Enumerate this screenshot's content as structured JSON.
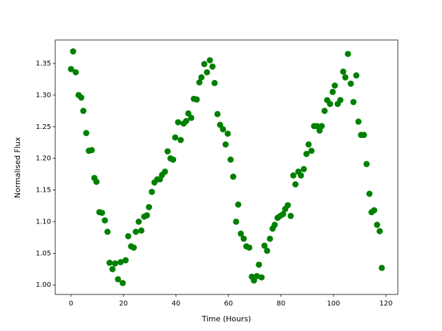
{
  "chart_data": {
    "type": "scatter",
    "xlabel": "Time (Hours)",
    "ylabel": "Normalised Flux",
    "color": "#008000",
    "x": [
      0,
      0.8,
      1.8,
      2.9,
      3.9,
      4.7,
      5.8,
      6.8,
      7.9,
      8.9,
      9.7,
      10.8,
      11.8,
      12.9,
      13.9,
      14.7,
      15.8,
      16.8,
      17.9,
      18.9,
      19.7,
      20.8,
      21.8,
      22.9,
      23.9,
      24.7,
      25.8,
      26.8,
      27.9,
      28.9,
      29.7,
      30.8,
      31.8,
      32.9,
      33.9,
      34.7,
      35.8,
      36.8,
      37.9,
      38.9,
      39.7,
      40.8,
      41.8,
      42.9,
      43.9,
      44.7,
      45.8,
      46.8,
      47.9,
      48.9,
      49.7,
      50.8,
      51.8,
      52.9,
      53.9,
      54.7,
      55.8,
      56.8,
      57.9,
      58.9,
      59.7,
      60.8,
      61.8,
      62.9,
      63.7,
      64.7,
      65.8,
      66.8,
      67.9,
      68.9,
      69.7,
      70.8,
      71.6,
      72.6,
      73.7,
      74.7,
      75.8,
      76.8,
      77.6,
      78.7,
      79.7,
      80.8,
      81.6,
      82.6,
      83.7,
      84.7,
      85.5,
      86.6,
      87.6,
      88.7,
      89.7,
      90.5,
      91.6,
      92.6,
      93.7,
      94.7,
      95.5,
      96.6,
      97.6,
      98.7,
      99.7,
      100.5,
      101.6,
      102.6,
      103.7,
      104.5,
      105.5,
      106.6,
      107.6,
      108.7,
      109.5,
      110.5,
      111.6,
      112.6,
      113.7,
      114.5,
      115.5,
      116.6,
      117.6,
      118.4
    ],
    "values": [
      1.341,
      1.369,
      1.336,
      1.3,
      1.296,
      1.275,
      1.24,
      1.212,
      1.213,
      1.169,
      1.163,
      1.115,
      1.114,
      1.102,
      1.084,
      1.035,
      1.025,
      1.034,
      1.009,
      1.036,
      1.003,
      1.039,
      1.077,
      1.061,
      1.059,
      1.084,
      1.1,
      1.086,
      1.108,
      1.11,
      1.123,
      1.147,
      1.162,
      1.167,
      1.167,
      1.174,
      1.179,
      1.211,
      1.2,
      1.198,
      1.233,
      1.257,
      1.229,
      1.255,
      1.259,
      1.271,
      1.264,
      1.294,
      1.293,
      1.32,
      1.328,
      1.349,
      1.336,
      1.355,
      1.345,
      1.319,
      1.27,
      1.253,
      1.246,
      1.222,
      1.239,
      1.198,
      1.171,
      1.1,
      1.127,
      1.081,
      1.073,
      1.061,
      1.059,
      1.013,
      1.007,
      1.014,
      1.032,
      1.012,
      1.062,
      1.054,
      1.073,
      1.089,
      1.095,
      1.106,
      1.109,
      1.112,
      1.12,
      1.126,
      1.109,
      1.173,
      1.159,
      1.179,
      1.173,
      1.183,
      1.207,
      1.222,
      1.212,
      1.251,
      1.251,
      1.244,
      1.251,
      1.275,
      1.292,
      1.286,
      1.305,
      1.315,
      1.286,
      1.292,
      1.337,
      1.328,
      1.365,
      1.318,
      1.289,
      1.331,
      1.258,
      1.237,
      1.237,
      1.191,
      1.144,
      1.115,
      1.118,
      1.095,
      1.085,
      1.027
    ],
    "xlim": [
      -6,
      124.5
    ],
    "xticks": [
      0,
      20,
      40,
      60,
      80,
      100,
      120
    ],
    "ylim": [
      0.985,
      1.387
    ],
    "yticks": [
      {
        "value": 1,
        "label": "1.00"
      },
      1.05,
      {
        "value": 1.1,
        "label": "1.10"
      },
      1.15,
      {
        "value": 1.2,
        "label": "1.20"
      },
      1.25,
      {
        "value": 1.3,
        "label": "1.30"
      },
      1.35
    ]
  }
}
